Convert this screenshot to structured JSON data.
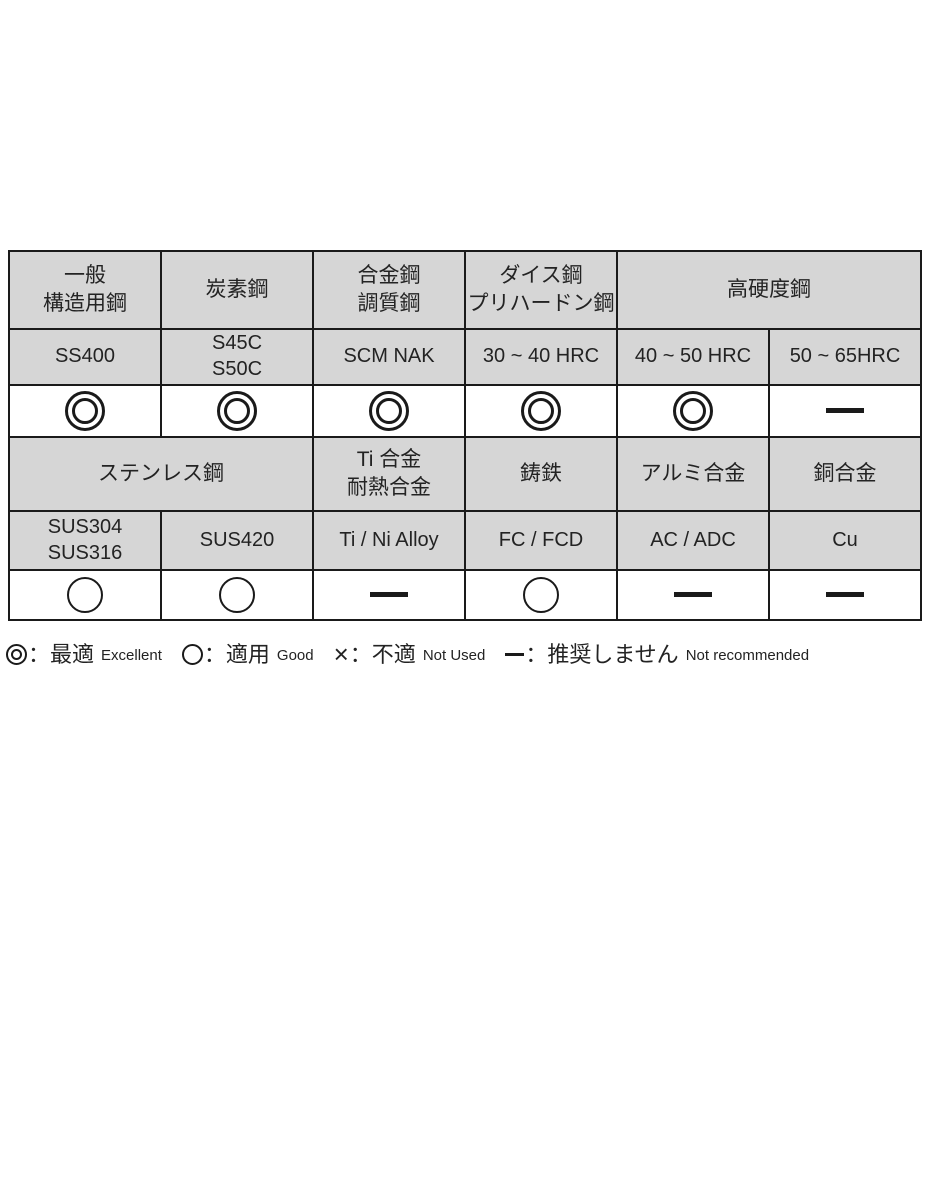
{
  "colors": {
    "page_bg": "#ffffff",
    "header_bg": "#d6d6d6",
    "border": "#1a1a1a",
    "text": "#232323",
    "symbol": "#1a1a1a"
  },
  "table": {
    "group_headers_top": [
      {
        "label": "一般\n構造用鋼",
        "span": 1
      },
      {
        "label": "炭素鋼",
        "span": 1
      },
      {
        "label": "合金鋼\n調質鋼",
        "span": 1
      },
      {
        "label": "ダイス鋼\nプリハードン鋼",
        "span": 1
      },
      {
        "label": "高硬度鋼",
        "span": 2
      }
    ],
    "grades_top": [
      "SS400",
      "S45C\nS50C",
      "SCM NAK",
      "30 ~ 40 HRC",
      "40 ~ 50 HRC",
      "50 ~ 65HRC"
    ],
    "ratings_top": [
      "excellent",
      "excellent",
      "excellent",
      "excellent",
      "excellent",
      "dash"
    ],
    "group_headers_bottom": [
      {
        "label": "ステンレス鋼",
        "span": 2
      },
      {
        "label": "Ti 合金\n耐熱合金",
        "span": 1
      },
      {
        "label": "鋳鉄",
        "span": 1
      },
      {
        "label": "アルミ合金",
        "span": 1
      },
      {
        "label": "銅合金",
        "span": 1
      }
    ],
    "grades_bottom": [
      "SUS304\nSUS316",
      "SUS420",
      "Ti / Ni Alloy",
      "FC / FCD",
      "AC / ADC",
      "Cu"
    ],
    "ratings_bottom": [
      "good",
      "good",
      "dash",
      "good",
      "dash",
      "dash"
    ]
  },
  "legend": {
    "items": [
      {
        "type": "excellent",
        "label_jp": "：最適",
        "label_en": "Excellent"
      },
      {
        "type": "good",
        "label_jp": "：適用",
        "label_en": "Good"
      },
      {
        "type": "not-used",
        "label_jp": "：不適",
        "label_en": "Not Used"
      },
      {
        "type": "dash",
        "label_jp": "：推奨しません",
        "label_en": "Not recommended"
      }
    ]
  }
}
